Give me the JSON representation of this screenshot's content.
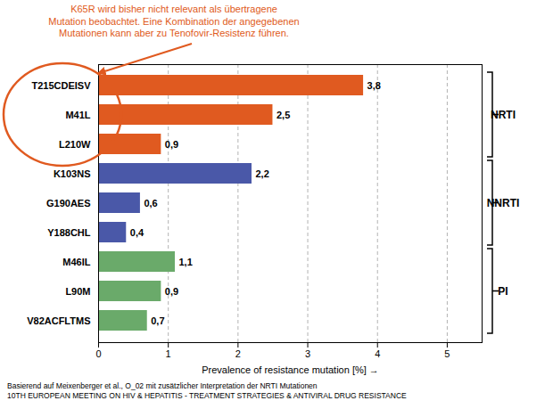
{
  "chart_data": {
    "type": "bar",
    "orientation": "horizontal",
    "categories": [
      "V82ACFLTMS",
      "L90M",
      "M46IL",
      "Y188CHL",
      "G190AES",
      "K103NS",
      "L210W",
      "M41L",
      "T215CDEISV"
    ],
    "values": [
      0.7,
      0.9,
      1.1,
      0.4,
      0.6,
      2.2,
      0.9,
      2.5,
      3.8
    ],
    "colors": [
      "#6aaa6a",
      "#6aaa6a",
      "#6aaa6a",
      "#4a58a8",
      "#4a58a8",
      "#4a58a8",
      "#e05a20",
      "#e05a20",
      "#e05a20"
    ],
    "value_labels": [
      "0,7",
      "0,9",
      "1,1",
      "0,4",
      "0,6",
      "2,2",
      "0,9",
      "2,5",
      "3,8"
    ],
    "data_labels": true,
    "xlim": [
      0,
      5.5
    ],
    "xticks": [
      0,
      1,
      2,
      3,
      4,
      5
    ],
    "xlabel": "Prevalence of resistance mutation [%]",
    "grid": true,
    "groups": [
      {
        "label": "NRTI",
        "categories": [
          "L210W",
          "M41L",
          "T215CDEISV"
        ]
      },
      {
        "label": "NNRTI",
        "categories": [
          "Y188CHL",
          "G190AES",
          "K103NS"
        ]
      },
      {
        "label": "PI",
        "categories": [
          "V82ACFLTMS",
          "L90M",
          "M46IL"
        ]
      }
    ],
    "circle": {
      "group": "NRTI",
      "color": "#e05a20"
    },
    "annotation": {
      "text": [
        "K65R wird bisher nicht relevant als übertragene",
        "Mutation beobachtet. Eine Kombination der angegebenen",
        "Mutationen kann aber zu Tenofovir-Resistenz führen."
      ],
      "color": "#e05a20"
    },
    "footer": [
      "Basierend auf Meixenberger et al., O_02 mit zusätzlicher Interpretation der NRTI Mutationen",
      "10TH EUROPEAN MEETING ON HIV & HEPATITIS - TREATMENT STRATEGIES & ANTIVIRAL DRUG RESISTANCE"
    ]
  }
}
